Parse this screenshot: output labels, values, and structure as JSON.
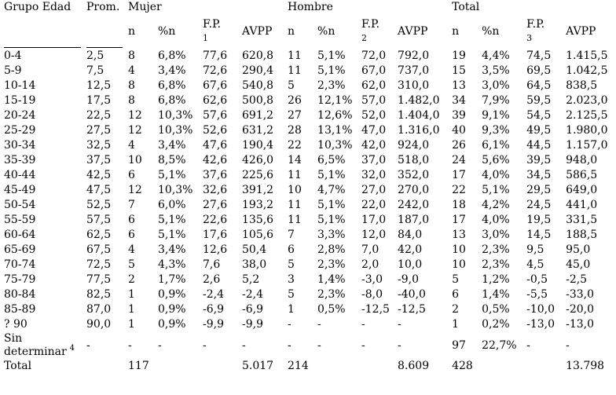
{
  "page": {
    "background_color": "#ffffff",
    "text_color": "#000000"
  },
  "table": {
    "headers": {
      "grupo_edad": "Grupo Edad",
      "prom": "Prom."
    },
    "groups": [
      {
        "label": "Mujer",
        "fp_sup": "1"
      },
      {
        "label": "Hombre",
        "fp_sup": "2"
      },
      {
        "label": "Total",
        "fp_sup": "3"
      }
    ],
    "sub_headers": {
      "n": "n",
      "pct_n": "%n",
      "fp": "F.P.",
      "avpp": "AVPP"
    },
    "rows": [
      {
        "label": "0-4",
        "values": [
          "2,5",
          "8",
          "6,8%",
          "77,6",
          "620,8",
          "11",
          "5,1%",
          "72,0",
          "792,0",
          "19",
          "4,4%",
          "74,5",
          "1.415,5"
        ]
      },
      {
        "label": "5-9",
        "values": [
          "7,5",
          "4",
          "3,4%",
          "72,6",
          "290,4",
          "11",
          "5,1%",
          "67,0",
          "737,0",
          "15",
          "3,5%",
          "69,5",
          "1.042,5"
        ]
      },
      {
        "label": "10-14",
        "values": [
          "12,5",
          "8",
          "6,8%",
          "67,6",
          "540,8",
          "5",
          "2,3%",
          "62,0",
          "310,0",
          "13",
          "3,0%",
          "64,5",
          "838,5"
        ]
      },
      {
        "label": "15-19",
        "values": [
          "17,5",
          "8",
          "6,8%",
          "62,6",
          "500,8",
          "26",
          "12,1%",
          "57,0",
          "1.482,0",
          "34",
          "7,9%",
          "59,5",
          "2.023,0"
        ]
      },
      {
        "label": "20-24",
        "values": [
          "22,5",
          "12",
          "10,3%",
          "57,6",
          "691,2",
          "27",
          "12,6%",
          "52,0",
          "1.404,0",
          "39",
          "9,1%",
          "54,5",
          "2.125,5"
        ]
      },
      {
        "label": "25-29",
        "values": [
          "27,5",
          "12",
          "10,3%",
          "52,6",
          "631,2",
          "28",
          "13,1%",
          "47,0",
          "1.316,0",
          "40",
          "9,3%",
          "49,5",
          "1.980,0"
        ]
      },
      {
        "label": "30-34",
        "values": [
          "32,5",
          "4",
          "3,4%",
          "47,6",
          "190,4",
          "22",
          "10,3%",
          "42,0",
          "924,0",
          "26",
          "6,1%",
          "44,5",
          "1.157,0"
        ]
      },
      {
        "label": "35-39",
        "values": [
          "37,5",
          "10",
          "8,5%",
          "42,6",
          "426,0",
          "14",
          "6,5%",
          "37,0",
          "518,0",
          "24",
          "5,6%",
          "39,5",
          "948,0"
        ]
      },
      {
        "label": "40-44",
        "values": [
          "42,5",
          "6",
          "5,1%",
          "37,6",
          "225,6",
          "11",
          "5,1%",
          "32,0",
          "352,0",
          "17",
          "4,0%",
          "34,5",
          "586,5"
        ]
      },
      {
        "label": "45-49",
        "values": [
          "47,5",
          "12",
          "10,3%",
          "32,6",
          "391,2",
          "10",
          "4,7%",
          "27,0",
          "270,0",
          "22",
          "5,1%",
          "29,5",
          "649,0"
        ]
      },
      {
        "label": "50-54",
        "values": [
          "52,5",
          "7",
          "6,0%",
          "27,6",
          "193,2",
          "11",
          "5,1%",
          "22,0",
          "242,0",
          "18",
          "4,2%",
          "24,5",
          "441,0"
        ]
      },
      {
        "label": "55-59",
        "values": [
          "57,5",
          "6",
          "5,1%",
          "22,6",
          "135,6",
          "11",
          "5,1%",
          "17,0",
          "187,0",
          "17",
          "4,0%",
          "19,5",
          "331,5"
        ]
      },
      {
        "label": "60-64",
        "values": [
          "62,5",
          "6",
          "5,1%",
          "17,6",
          "105,6",
          "7",
          "3,3%",
          "12,0",
          "84,0",
          "13",
          "3,0%",
          "14,5",
          "188,5"
        ]
      },
      {
        "label": "65-69",
        "values": [
          "67,5",
          "4",
          "3,4%",
          "12,6",
          "50,4",
          "6",
          "2,8%",
          "7,0",
          "42,0",
          "10",
          "2,3%",
          "9,5",
          "95,0"
        ]
      },
      {
        "label": "70-74",
        "values": [
          "72,5",
          "5",
          "4,3%",
          "7,6",
          "38,0",
          "5",
          "2,3%",
          "2,0",
          "10,0",
          "10",
          "2,3%",
          "4,5",
          "45,0"
        ]
      },
      {
        "label": "75-79",
        "values": [
          "77,5",
          "2",
          "1,7%",
          "2,6",
          "5,2",
          "3",
          "1,4%",
          "-3,0",
          "-9,0",
          "5",
          "1,2%",
          "-0,5",
          "-2,5"
        ]
      },
      {
        "label": "80-84",
        "values": [
          "82,5",
          "1",
          "0,9%",
          "-2,4",
          "-2,4",
          "5",
          "2,3%",
          "-8,0",
          "-40,0",
          "6",
          "1,4%",
          "-5,5",
          "-33,0"
        ]
      },
      {
        "label": "85-89",
        "values": [
          "87,0",
          "1",
          "0,9%",
          "-6,9",
          "-6,9",
          "1",
          "0,5%",
          "-12,5",
          "-12,5",
          "2",
          "0,5%",
          "-10,0",
          "-20,0"
        ]
      },
      {
        "label": "? 90",
        "values": [
          "90,0",
          "1",
          "0,9%",
          "-9,9",
          "-9,9",
          "-",
          "-",
          "-",
          "-",
          "1",
          "0,2%",
          "-13,0",
          "-13,0"
        ]
      },
      {
        "label": "Sin determinar",
        "sup": "4",
        "values": [
          "-",
          "-",
          "-",
          "-",
          "-",
          "-",
          "-",
          "-",
          "-",
          "97",
          "22,7%",
          "-",
          "-"
        ]
      },
      {
        "label": "Total",
        "values": [
          "",
          "117",
          "",
          "",
          "5.017",
          "214",
          "",
          "",
          "8.609",
          "428",
          "",
          "",
          "13.798"
        ]
      }
    ]
  }
}
